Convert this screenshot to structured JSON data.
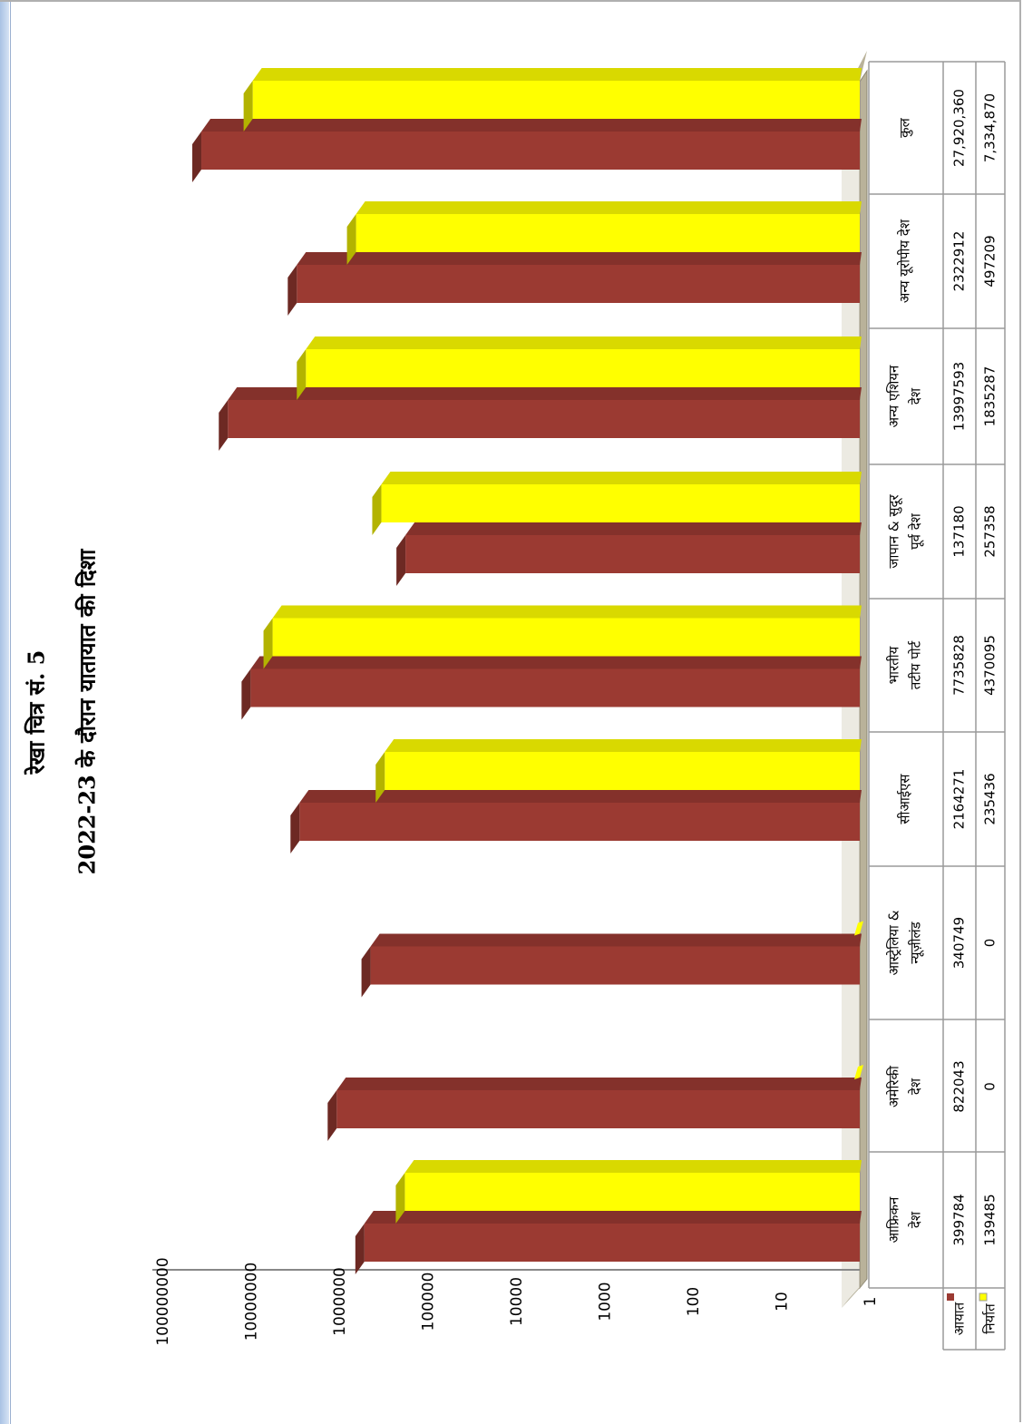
{
  "chart_data": {
    "type": "bar",
    "title": "रेखा चित्र सं. 5",
    "subtitle": "2022-23 के दौरान यातायात की दिशा",
    "scale": "log",
    "ylim": [
      1,
      100000000
    ],
    "y_ticks": [
      "1",
      "10",
      "100",
      "1000",
      "10000",
      "100000",
      "1000000",
      "10000000",
      "100000000"
    ],
    "categories": [
      [
        "आफ्रिकन",
        "देश"
      ],
      [
        "अमेरिकी",
        "देश"
      ],
      [
        "आस्ट्रेलिया &",
        "न्यूज़ीलंड"
      ],
      [
        "सीआईएस"
      ],
      [
        "भारतीय",
        "तटीय पोर्ट"
      ],
      [
        "जापान & सुदूर",
        "पूर्व देश"
      ],
      [
        "अन्य एशियन",
        "देश"
      ],
      [
        "अन्य यूरोपीय देश"
      ],
      [
        "कुल"
      ]
    ],
    "series": [
      {
        "name": "आयात",
        "color": "#9b3a32",
        "values": [
          399784,
          822043,
          340749,
          2164271,
          7735828,
          137180,
          13997593,
          2322912,
          27920360
        ],
        "labels": [
          "399784",
          "822043",
          "340749",
          "2164271",
          "7735828",
          "137180",
          "13997593",
          "2322912",
          "27,920,360"
        ]
      },
      {
        "name": "निर्यात",
        "color": "#ffff00",
        "values": [
          139485,
          0,
          0,
          235436,
          4370095,
          257358,
          1835287,
          497209,
          7334870
        ],
        "labels": [
          "139485",
          "0",
          "0",
          "235436",
          "4370095",
          "257358",
          "1835287",
          "497209",
          "7,334,870"
        ]
      }
    ],
    "legend": "table",
    "rotation": "page rotated 90 degrees counter-clockwise"
  }
}
